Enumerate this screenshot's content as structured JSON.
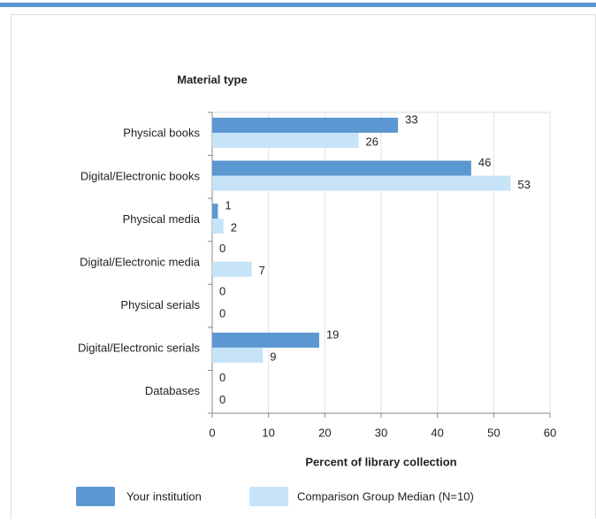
{
  "chart_data": {
    "type": "bar",
    "orientation": "horizontal",
    "y_label": "Material type",
    "x_label": "Percent of library collection",
    "categories": [
      "Physical books",
      "Digital/Electronic books",
      "Physical media",
      "Digital/Electronic media",
      "Physical serials",
      "Digital/Electronic serials",
      "Databases"
    ],
    "series": [
      {
        "name": "Your institution",
        "color": "#5b97d1",
        "values": [
          33,
          46,
          1,
          0,
          0,
          19,
          0
        ]
      },
      {
        "name": "Comparison Group Median (N=10)",
        "color": "#c6e3f8",
        "values": [
          26,
          53,
          2,
          7,
          0,
          9,
          0
        ]
      }
    ],
    "xlim": [
      0,
      60
    ],
    "xticks": [
      0,
      10,
      20,
      30,
      40,
      50,
      60
    ],
    "grid": true
  }
}
